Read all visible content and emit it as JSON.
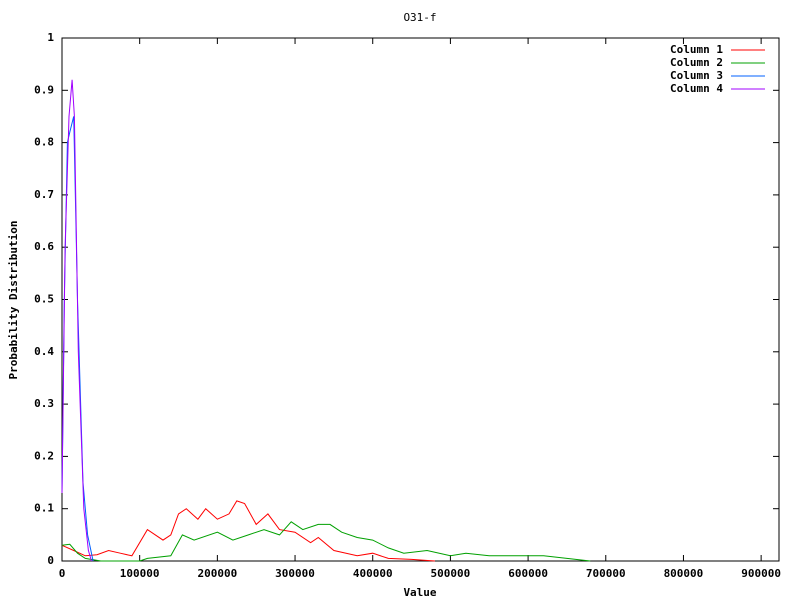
{
  "chart_data": {
    "type": "line",
    "title": "O31-f",
    "x_label": "Value",
    "y_label": "Probability Distribution",
    "xlim": [
      0,
      923000
    ],
    "ylim": [
      0,
      1
    ],
    "xticks": [
      0,
      100000,
      200000,
      300000,
      400000,
      500000,
      600000,
      700000,
      800000,
      900000
    ],
    "yticks": [
      0,
      0.1,
      0.2,
      0.3,
      0.4,
      0.5,
      0.6,
      0.7,
      0.8,
      0.9,
      1
    ],
    "legend": "top-right",
    "series": [
      {
        "name": "Column 1",
        "color": "#ff0000",
        "x": [
          0,
          15000,
          30000,
          45000,
          60000,
          75000,
          90000,
          110000,
          130000,
          140000,
          150000,
          160000,
          175000,
          185000,
          200000,
          215000,
          225000,
          235000,
          250000,
          265000,
          280000,
          300000,
          320000,
          330000,
          350000,
          380000,
          400000,
          420000,
          450000,
          480000
        ],
        "values": [
          0.03,
          0.02,
          0.01,
          0.012,
          0.02,
          0.015,
          0.01,
          0.06,
          0.04,
          0.05,
          0.09,
          0.1,
          0.08,
          0.1,
          0.08,
          0.09,
          0.115,
          0.11,
          0.07,
          0.09,
          0.06,
          0.055,
          0.035,
          0.045,
          0.02,
          0.01,
          0.015,
          0.005,
          0.003,
          0
        ]
      },
      {
        "name": "Column 2",
        "color": "#00a000",
        "x": [
          0,
          10000,
          20000,
          30000,
          50000,
          100000,
          110000,
          140000,
          155000,
          170000,
          200000,
          220000,
          240000,
          260000,
          280000,
          295000,
          310000,
          330000,
          345000,
          360000,
          380000,
          400000,
          420000,
          440000,
          470000,
          500000,
          520000,
          550000,
          580000,
          620000,
          650000,
          680000
        ],
        "values": [
          0.03,
          0.032,
          0.015,
          0.005,
          0,
          0,
          0.005,
          0.01,
          0.05,
          0.04,
          0.055,
          0.04,
          0.05,
          0.06,
          0.05,
          0.075,
          0.06,
          0.07,
          0.07,
          0.055,
          0.045,
          0.04,
          0.025,
          0.015,
          0.02,
          0.01,
          0.015,
          0.01,
          0.01,
          0.01,
          0.005,
          0
        ]
      },
      {
        "name": "Column 3",
        "color": "#0060ff",
        "x": [
          0,
          3000,
          7000,
          10000,
          15000,
          20000,
          27000,
          33000,
          40000
        ],
        "values": [
          0.13,
          0.5,
          0.8,
          0.82,
          0.85,
          0.5,
          0.15,
          0.05,
          0
        ]
      },
      {
        "name": "Column 4",
        "color": "#a000ff",
        "x": [
          0,
          4000,
          9000,
          13000,
          16000,
          21000,
          28000,
          34000,
          38000
        ],
        "values": [
          0.13,
          0.6,
          0.85,
          0.92,
          0.85,
          0.4,
          0.1,
          0.02,
          0
        ]
      }
    ]
  }
}
